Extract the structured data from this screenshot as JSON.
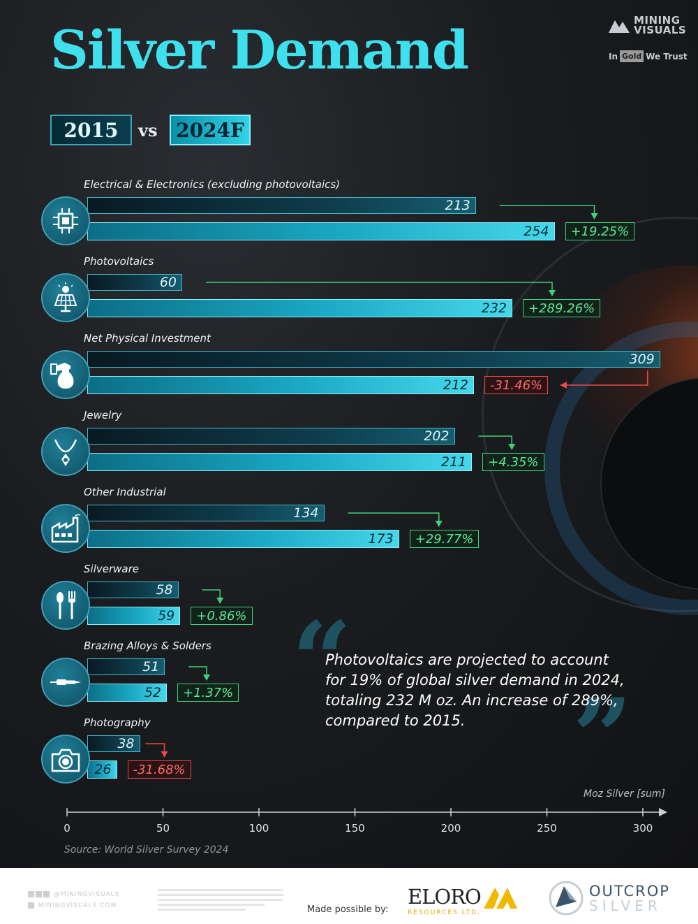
{
  "title": "Silver Demand",
  "year_a": "2015",
  "vs_label": "vs",
  "year_b": "2024F",
  "brand": {
    "mining_visuals_line1": "MINING",
    "mining_visuals_line2": "VISUALS",
    "igwt_in": "In",
    "igwt_gold": "Gold",
    "igwt_rest": "We Trust"
  },
  "quote": "Photovoltaics are projected to account for 19% of global silver demand in 2024, totaling 232 M oz. An increase of 289%, compared to 2015.",
  "quote_open": "“",
  "quote_close": "”",
  "axis": {
    "unit": "Moz Silver [sum]",
    "ticks": [
      "0",
      "50",
      "100",
      "150",
      "200",
      "250",
      "300"
    ]
  },
  "source": "Source: World Silver Survey 2024",
  "footer": {
    "social": "@MININGVISUALS",
    "website": "MININGVISUALS.COM",
    "made_by": "Made possible by:",
    "eloro_name": "ELORO",
    "eloro_sub": "RESOURCES LTD.",
    "outcrop_name": "OUTCROP",
    "outcrop_sub": "SILVER"
  },
  "colors": {
    "accent": "#3fe0ee",
    "up": "#5fe796",
    "down": "#ff6b6b"
  },
  "chart_data": {
    "type": "bar",
    "orientation": "horizontal",
    "title": "Silver Demand",
    "xlabel": "Moz Silver [sum]",
    "xlim": [
      0,
      300
    ],
    "categories": [
      "Electrical & Electronics (excluding photovoltaics)",
      "Photovoltaics",
      "Net Physical Investment",
      "Jewelry",
      "Other Industrial",
      "Silverware",
      "Brazing Alloys & Solders",
      "Photography"
    ],
    "series": [
      {
        "name": "2015",
        "values": [
          213,
          60,
          309,
          202,
          134,
          58,
          51,
          38
        ]
      },
      {
        "name": "2024F",
        "values": [
          254,
          232,
          212,
          211,
          173,
          59,
          52,
          26
        ]
      }
    ],
    "change_labels": [
      "+19.25%",
      "+289.26%",
      "-31.46%",
      "+4.35%",
      "+29.77%",
      "+0.86%",
      "+1.37%",
      "-31.68%"
    ],
    "icons": [
      "chip-icon",
      "solar-panel-icon",
      "money-bag-icon",
      "necklace-icon",
      "factory-icon",
      "cutlery-icon",
      "soldering-iron-icon",
      "camera-icon"
    ]
  }
}
